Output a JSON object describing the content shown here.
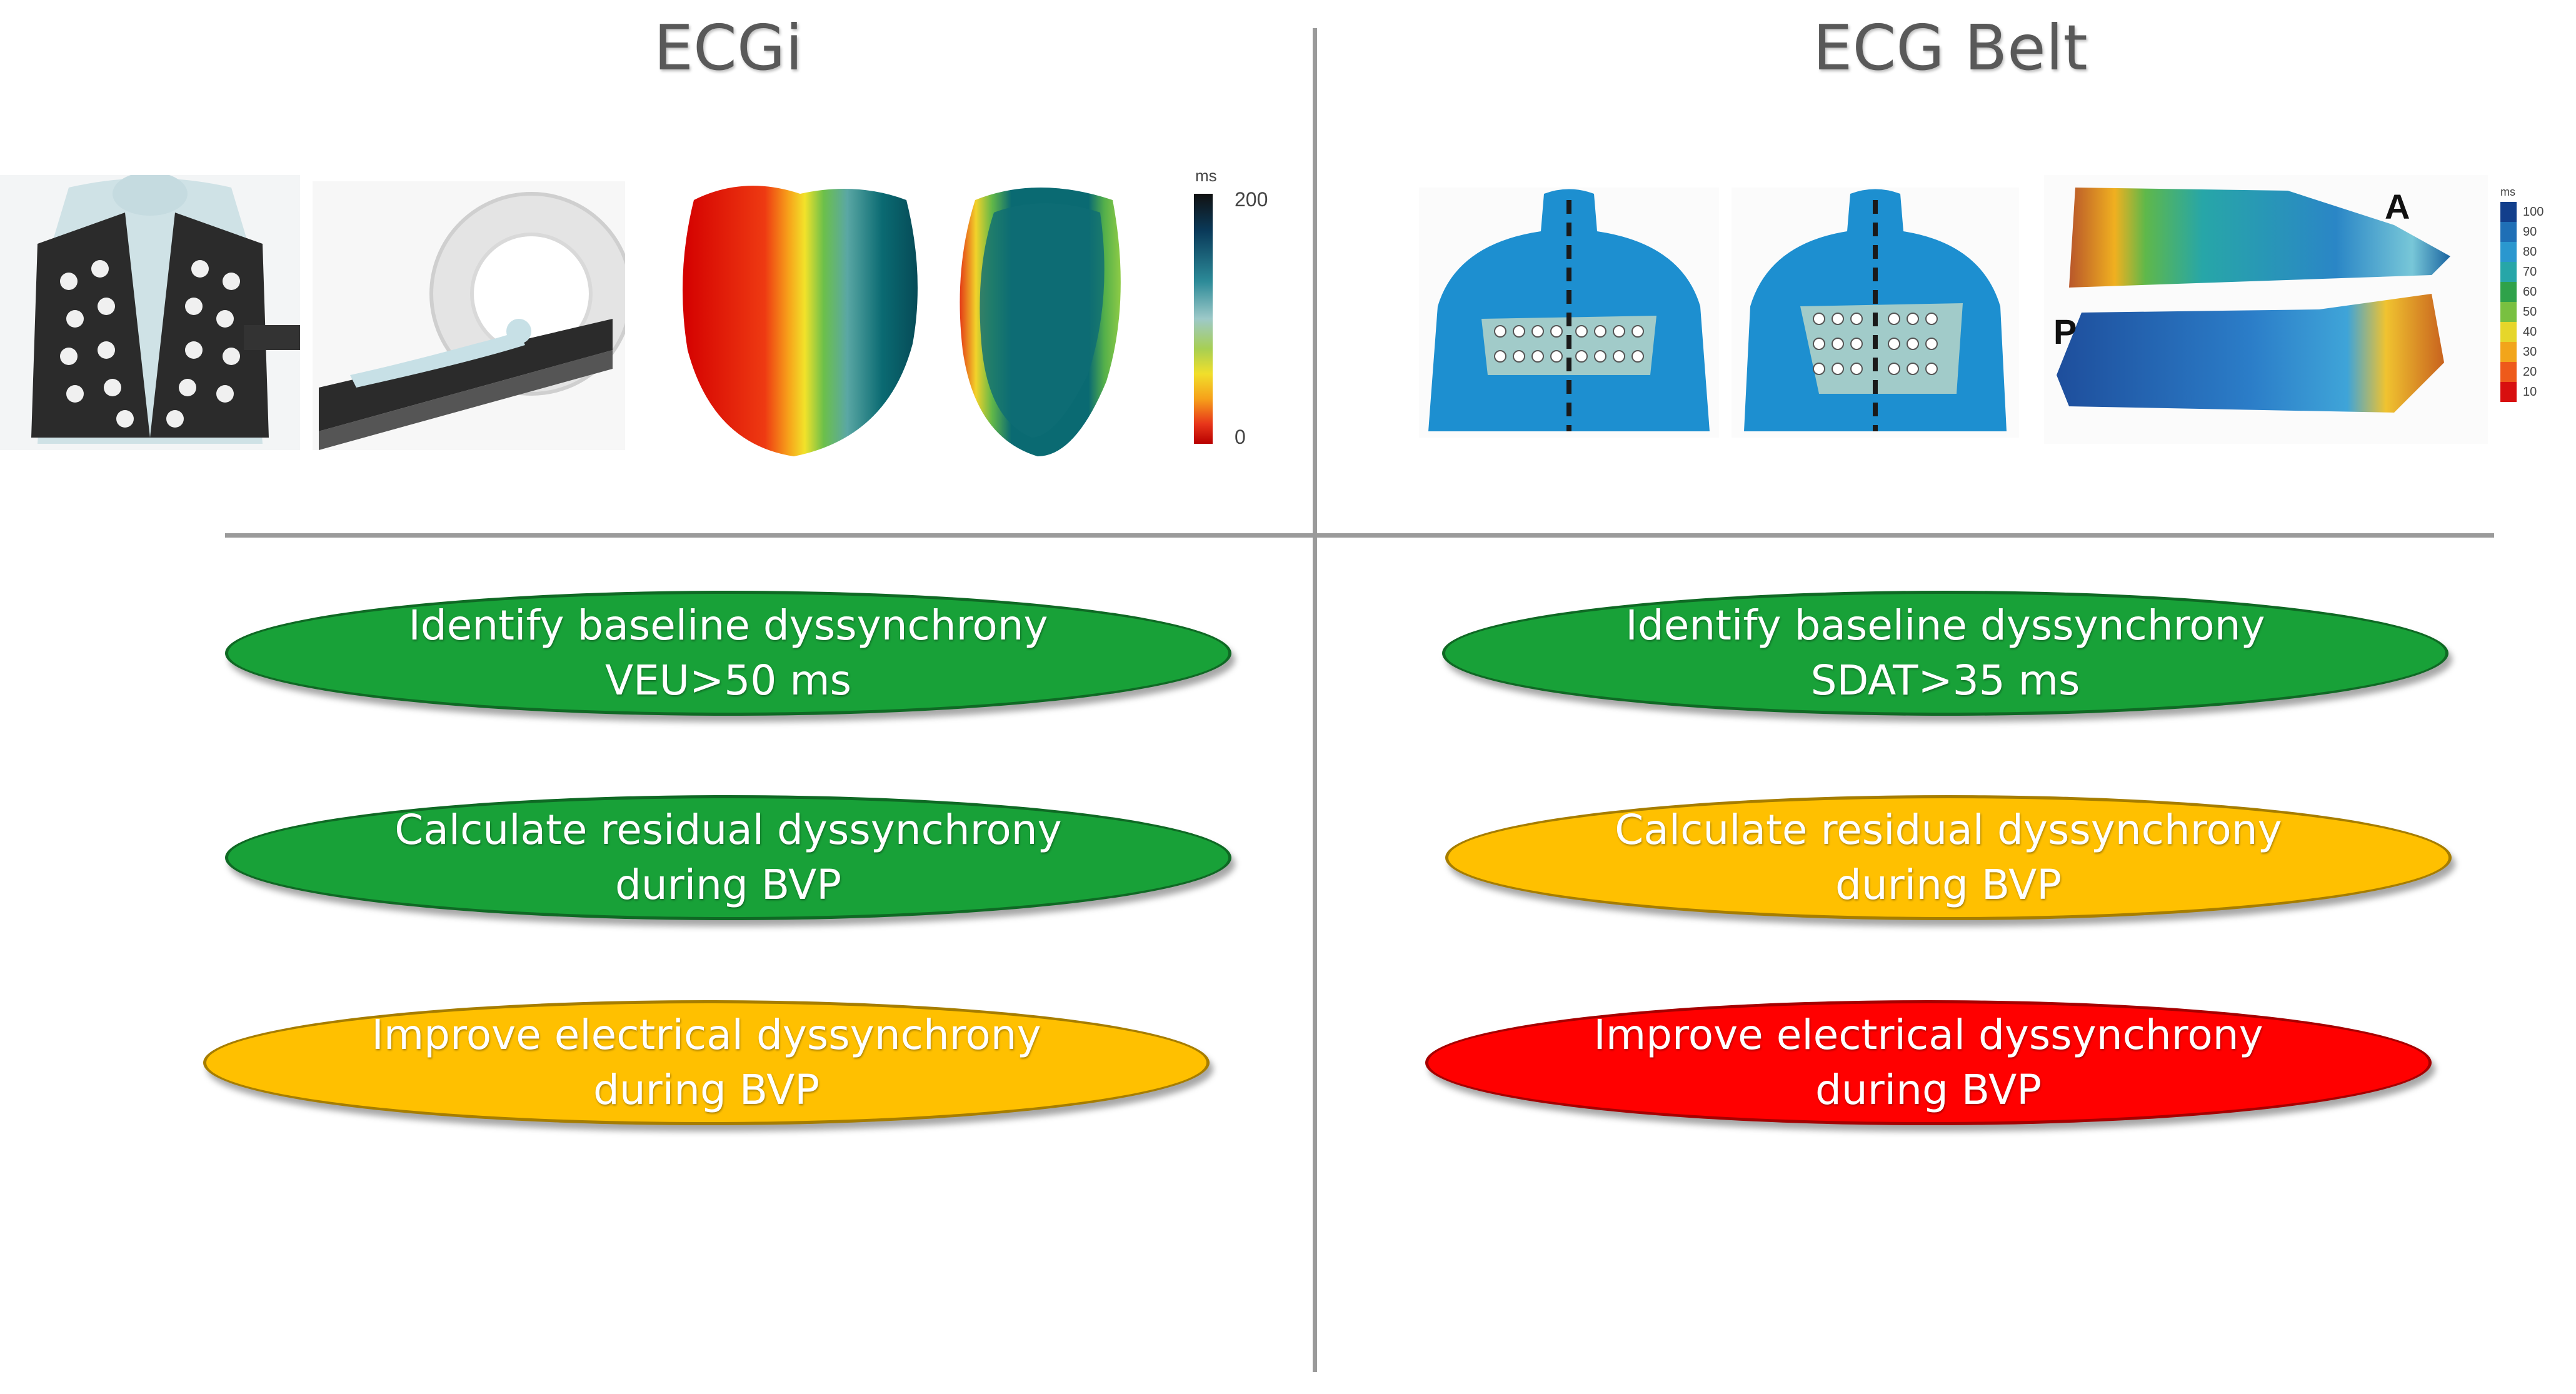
{
  "columns": [
    {
      "title": "ECGi",
      "colorbar": {
        "unit": "ms",
        "max_label": "200",
        "min_label": "0"
      },
      "plus": "+",
      "steps": [
        {
          "line1": "Identify baseline dyssynchrony",
          "line2": "VEU>50 ms",
          "status": "green"
        },
        {
          "line1": "Calculate residual dyssynchrony",
          "line2": "during BVP",
          "status": "green"
        },
        {
          "line1": "Improve electrical dyssynchrony",
          "line2": "during BVP",
          "status": "amber"
        }
      ]
    },
    {
      "title": "ECG Belt",
      "colorbar": {
        "unit": "ms",
        "labels": [
          "100",
          "90",
          "80",
          "70",
          "60",
          "50",
          "40",
          "30",
          "20",
          "10"
        ]
      },
      "map_labels": {
        "anterior": "A",
        "posterior": "P"
      },
      "steps": [
        {
          "line1": "Identify baseline dyssynchrony",
          "line2": "SDAT>35 ms",
          "status": "green"
        },
        {
          "line1": "Calculate residual dyssynchrony",
          "line2": "during BVP",
          "status": "amber"
        },
        {
          "line1": "Improve electrical dyssynchrony",
          "line2": "during BVP",
          "status": "red"
        }
      ]
    }
  ],
  "colors": {
    "green": "#18a138",
    "amber": "#ffc000",
    "red": "#ff0000",
    "divider": "#9a9a9a",
    "title": "#595959"
  }
}
